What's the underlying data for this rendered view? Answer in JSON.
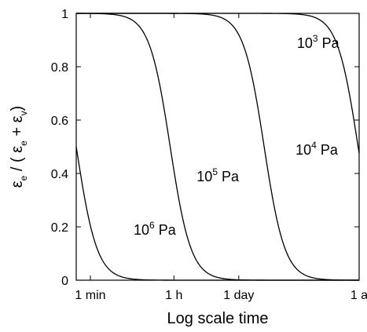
{
  "chart_data": {
    "type": "line",
    "xlabel": "Log scale time",
    "ylabel": {
      "epsilon": "ε",
      "e_sub": "e",
      "v_sub": "v",
      "middle": " / ( ",
      "plus": " + ",
      "close": ")"
    },
    "xscale": "log",
    "x_unit": "s",
    "xlim": [
      30,
      31536000
    ],
    "ylim": [
      0,
      1
    ],
    "xticks": [
      {
        "label": "1 min",
        "value": 60
      },
      {
        "label": "1 h",
        "value": 3600
      },
      {
        "label": "1 day",
        "value": 86400
      },
      {
        "label": "1 a",
        "value": 31536000
      }
    ],
    "yticks": [
      {
        "label": "0",
        "value": 0
      },
      {
        "label": "0.2",
        "value": 0.2
      },
      {
        "label": "0.4",
        "value": 0.4
      },
      {
        "label": "0.6",
        "value": 0.6
      },
      {
        "label": "0.8",
        "value": 0.8
      },
      {
        "label": "1",
        "value": 1
      }
    ],
    "grid": false,
    "curve_shape": "y = 1 / (1 + (t / t_half)^n)",
    "series": [
      {
        "base": "10",
        "exp": "6",
        "unit": " Pa",
        "t_half": 30,
        "n": 1.96,
        "label_x": 500,
        "label_y": 0.17
      },
      {
        "base": "10",
        "exp": "5",
        "unit": " Pa",
        "t_half": 3000,
        "n": 1.96,
        "label_x": 11000,
        "label_y": 0.37
      },
      {
        "base": "10",
        "exp": "4",
        "unit": " Pa",
        "t_half": 300000,
        "n": 1.96,
        "label_x": 1400000,
        "label_y": 0.47
      },
      {
        "base": "10",
        "exp": "3",
        "unit": " Pa",
        "t_half": 30000000,
        "n": 1.96,
        "label_x": 1500000,
        "label_y": 0.87
      }
    ]
  }
}
